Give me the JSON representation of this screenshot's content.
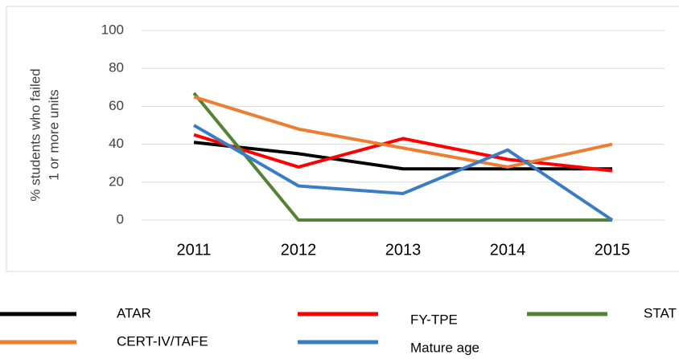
{
  "chart_data": {
    "type": "line",
    "y_label": [
      "% students who failed",
      "1 or more units"
    ],
    "categories": [
      "2011",
      "2012",
      "2013",
      "2014",
      "2015"
    ],
    "series": [
      {
        "name": "ATAR",
        "color": "#000000",
        "values": [
          41,
          35,
          27,
          27,
          27
        ]
      },
      {
        "name": "FY-TPE",
        "color": "#ff0000",
        "values": [
          45,
          28,
          43,
          32,
          26
        ]
      },
      {
        "name": "STAT",
        "color": "#548235",
        "values": [
          67,
          0,
          0,
          0,
          0
        ]
      },
      {
        "name": "CERT-IV/TAFE",
        "color": "#ed7d31",
        "values": [
          65,
          48,
          38,
          28,
          40
        ]
      },
      {
        "name": "Mature age",
        "color": "#3b7dc4",
        "values": [
          50,
          18,
          14,
          37,
          0
        ]
      }
    ],
    "ylim": [
      0,
      100
    ],
    "yticks": [
      0,
      20,
      40,
      60,
      80,
      100
    ],
    "grid": true
  }
}
